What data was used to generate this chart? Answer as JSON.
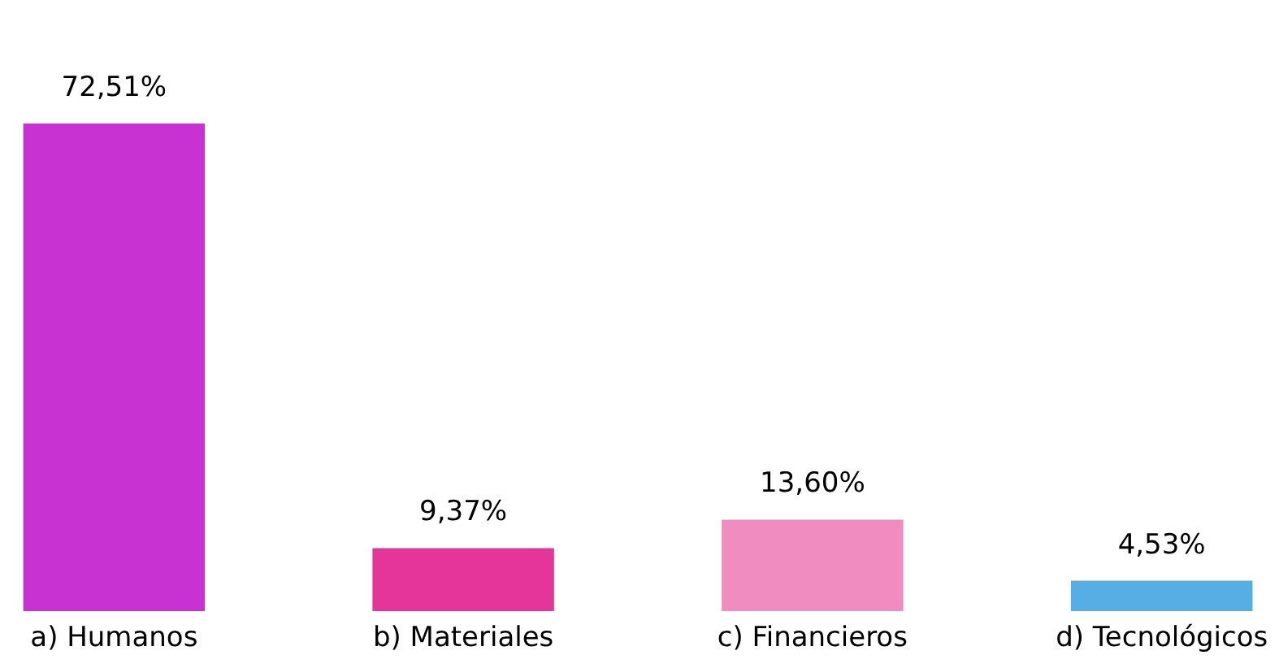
{
  "chart_data": {
    "type": "bar",
    "categories": [
      "a) Humanos",
      "b) Materiales",
      "c) Financieros",
      "d) Tecnológicos"
    ],
    "values": [
      72.51,
      9.37,
      13.6,
      4.53
    ],
    "colors": [
      "#c832d2",
      "#e6359a",
      "#f08cc0",
      "#56aee4"
    ],
    "value_labels": [
      "72,51%",
      "9,37%",
      "13,60%",
      "4,53%"
    ]
  }
}
